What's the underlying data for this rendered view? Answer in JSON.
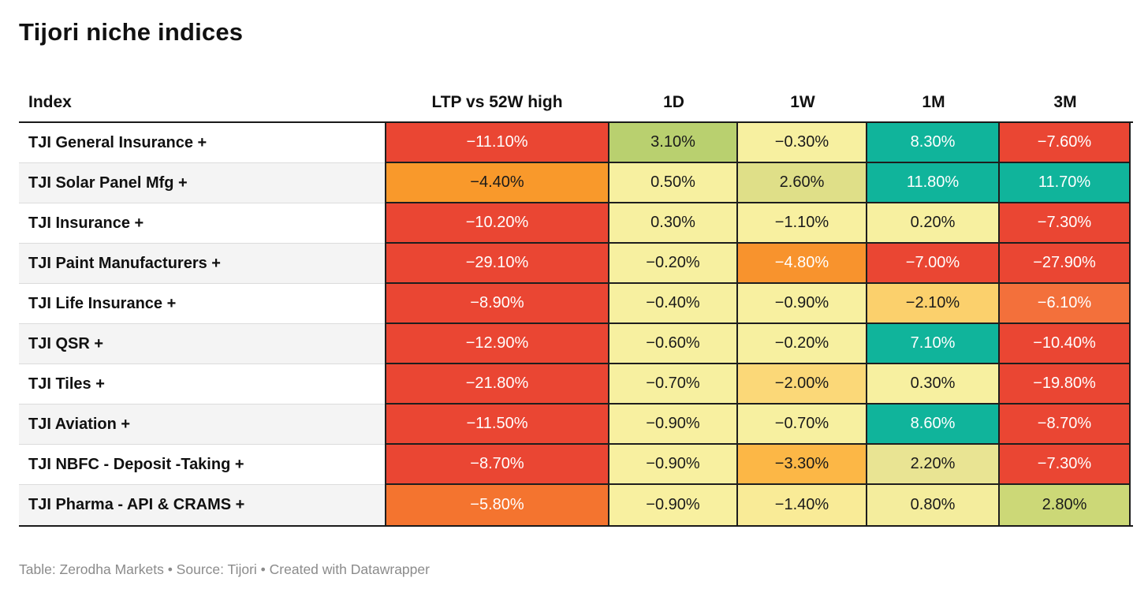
{
  "chart_data": {
    "type": "table",
    "title": "Tijori niche indices",
    "columns": [
      "Index",
      "LTP vs 52W high",
      "1D",
      "1W",
      "1M",
      "3M"
    ],
    "palette_note": {
      "strong_negative_red": "#ea4633",
      "orange": "#f9992b",
      "orange_red": "#f3703b",
      "amber": "#fcb746",
      "light_amber": "#fbd878",
      "pale_yellow": "#f7f0a0",
      "yellow_green": "#dfdf88",
      "olive_green": "#b9d06f",
      "strong_positive_teal": "#10b49b"
    },
    "rows": [
      {
        "index": "TJI General Insurance +",
        "cells": [
          {
            "value": "−11.10%",
            "bg": "#ea4633",
            "fg": "#ffffff"
          },
          {
            "value": "3.10%",
            "bg": "#b9d06f",
            "fg": "#1a1a1a"
          },
          {
            "value": "−0.30%",
            "bg": "#f7f0a0",
            "fg": "#1a1a1a"
          },
          {
            "value": "8.30%",
            "bg": "#10b49b",
            "fg": "#ffffff"
          },
          {
            "value": "−7.60%",
            "bg": "#ea4633",
            "fg": "#ffffff"
          }
        ]
      },
      {
        "index": "TJI Solar Panel Mfg +",
        "cells": [
          {
            "value": "−4.40%",
            "bg": "#f9992b",
            "fg": "#1a1a1a"
          },
          {
            "value": "0.50%",
            "bg": "#f7f0a0",
            "fg": "#1a1a1a"
          },
          {
            "value": "2.60%",
            "bg": "#dfdf88",
            "fg": "#1a1a1a"
          },
          {
            "value": "11.80%",
            "bg": "#10b49b",
            "fg": "#ffffff"
          },
          {
            "value": "11.70%",
            "bg": "#10b49b",
            "fg": "#ffffff"
          }
        ]
      },
      {
        "index": "TJI Insurance +",
        "cells": [
          {
            "value": "−10.20%",
            "bg": "#ea4633",
            "fg": "#ffffff"
          },
          {
            "value": "0.30%",
            "bg": "#f7f0a0",
            "fg": "#1a1a1a"
          },
          {
            "value": "−1.10%",
            "bg": "#f8f0a0",
            "fg": "#1a1a1a"
          },
          {
            "value": "0.20%",
            "bg": "#f7f0a0",
            "fg": "#1a1a1a"
          },
          {
            "value": "−7.30%",
            "bg": "#ea4633",
            "fg": "#ffffff"
          }
        ]
      },
      {
        "index": "TJI Paint Manufacturers +",
        "cells": [
          {
            "value": "−29.10%",
            "bg": "#ea4633",
            "fg": "#ffffff"
          },
          {
            "value": "−0.20%",
            "bg": "#f7f0a0",
            "fg": "#1a1a1a"
          },
          {
            "value": "−4.80%",
            "bg": "#f8932d",
            "fg": "#ffffff"
          },
          {
            "value": "−7.00%",
            "bg": "#ea4633",
            "fg": "#ffffff"
          },
          {
            "value": "−27.90%",
            "bg": "#ea4633",
            "fg": "#ffffff"
          }
        ]
      },
      {
        "index": "TJI Life Insurance +",
        "cells": [
          {
            "value": "−8.90%",
            "bg": "#ea4633",
            "fg": "#ffffff"
          },
          {
            "value": "−0.40%",
            "bg": "#f7f0a0",
            "fg": "#1a1a1a"
          },
          {
            "value": "−0.90%",
            "bg": "#f8f0a0",
            "fg": "#1a1a1a"
          },
          {
            "value": "−2.10%",
            "bg": "#fbd06c",
            "fg": "#1a1a1a"
          },
          {
            "value": "−6.10%",
            "bg": "#f3703b",
            "fg": "#ffffff"
          }
        ]
      },
      {
        "index": "TJI QSR +",
        "cells": [
          {
            "value": "−12.90%",
            "bg": "#ea4633",
            "fg": "#ffffff"
          },
          {
            "value": "−0.60%",
            "bg": "#f7f0a0",
            "fg": "#1a1a1a"
          },
          {
            "value": "−0.20%",
            "bg": "#f7f0a0",
            "fg": "#1a1a1a"
          },
          {
            "value": "7.10%",
            "bg": "#10b49b",
            "fg": "#ffffff"
          },
          {
            "value": "−10.40%",
            "bg": "#ea4633",
            "fg": "#ffffff"
          }
        ]
      },
      {
        "index": "TJI Tiles +",
        "cells": [
          {
            "value": "−21.80%",
            "bg": "#ea4633",
            "fg": "#ffffff"
          },
          {
            "value": "−0.70%",
            "bg": "#f7f0a0",
            "fg": "#1a1a1a"
          },
          {
            "value": "−2.00%",
            "bg": "#fbd878",
            "fg": "#1a1a1a"
          },
          {
            "value": "0.30%",
            "bg": "#f7f0a0",
            "fg": "#1a1a1a"
          },
          {
            "value": "−19.80%",
            "bg": "#ea4633",
            "fg": "#ffffff"
          }
        ]
      },
      {
        "index": "TJI Aviation +",
        "cells": [
          {
            "value": "−11.50%",
            "bg": "#ea4633",
            "fg": "#ffffff"
          },
          {
            "value": "−0.90%",
            "bg": "#f8f0a0",
            "fg": "#1a1a1a"
          },
          {
            "value": "−0.70%",
            "bg": "#f7f0a0",
            "fg": "#1a1a1a"
          },
          {
            "value": "8.60%",
            "bg": "#10b49b",
            "fg": "#ffffff"
          },
          {
            "value": "−8.70%",
            "bg": "#ea4633",
            "fg": "#ffffff"
          }
        ]
      },
      {
        "index": "TJI NBFC - Deposit -Taking +",
        "cells": [
          {
            "value": "−8.70%",
            "bg": "#ea4633",
            "fg": "#ffffff"
          },
          {
            "value": "−0.90%",
            "bg": "#f8f0a0",
            "fg": "#1a1a1a"
          },
          {
            "value": "−3.30%",
            "bg": "#fcb746",
            "fg": "#1a1a1a"
          },
          {
            "value": "2.20%",
            "bg": "#e9e493",
            "fg": "#1a1a1a"
          },
          {
            "value": "−7.30%",
            "bg": "#ea4633",
            "fg": "#ffffff"
          }
        ]
      },
      {
        "index": "TJI Pharma - API & CRAMS +",
        "cells": [
          {
            "value": "−5.80%",
            "bg": "#f4742f",
            "fg": "#ffffff"
          },
          {
            "value": "−0.90%",
            "bg": "#f8f0a0",
            "fg": "#1a1a1a"
          },
          {
            "value": "−1.40%",
            "bg": "#f9eb97",
            "fg": "#1a1a1a"
          },
          {
            "value": "0.80%",
            "bg": "#f4ed9d",
            "fg": "#1a1a1a"
          },
          {
            "value": "2.80%",
            "bg": "#ccd877",
            "fg": "#1a1a1a"
          }
        ]
      }
    ],
    "footer": "Table: Zerodha Markets • Source: Tijori • Created with Datawrapper"
  }
}
